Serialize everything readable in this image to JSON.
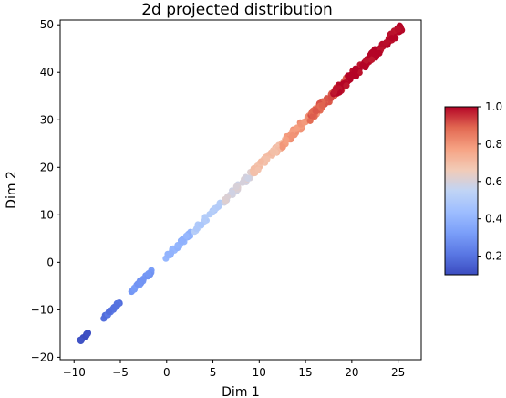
{
  "chart_data": {
    "type": "scatter",
    "title": "2d projected distribution",
    "xlabel": "Dim 1",
    "ylabel": "Dim 2",
    "xlim": [
      -11.5,
      27.5
    ],
    "ylim": [
      -20.5,
      51.0
    ],
    "xticks": [
      -10,
      -5,
      0,
      5,
      10,
      15,
      20,
      25
    ],
    "yticks": [
      -20,
      -10,
      0,
      10,
      20,
      30,
      40,
      50
    ],
    "colormap": "coolwarm",
    "colorbar": {
      "range": [
        0.1,
        1.0
      ],
      "ticks": [
        0.2,
        0.4,
        0.6,
        0.8,
        1.0
      ],
      "tick_labels": [
        "0.2",
        "0.4",
        "0.6",
        "0.8",
        "1.0"
      ]
    },
    "clusters": [
      {
        "x_range": [
          -9.5,
          -8.5
        ],
        "count": 14,
        "color_value": 0.1
      },
      {
        "x_range": [
          -6.8,
          -5.0
        ],
        "count": 24,
        "color_value": 0.2
      },
      {
        "x_range": [
          -3.8,
          -1.2
        ],
        "count": 30,
        "color_value": 0.3
      },
      {
        "x_range": [
          -0.2,
          2.6
        ],
        "count": 28,
        "color_value": 0.4
      },
      {
        "x_range": [
          3.0,
          5.8
        ],
        "count": 26,
        "color_value": 0.5
      },
      {
        "x_range": [
          6.2,
          9.3
        ],
        "count": 28,
        "color_value": 0.6
      },
      {
        "x_range": [
          9.3,
          12.8
        ],
        "count": 42,
        "color_value": 0.7
      },
      {
        "x_range": [
          12.5,
          16.5
        ],
        "count": 56,
        "color_value": 0.8
      },
      {
        "x_range": [
          15.5,
          19.5
        ],
        "count": 60,
        "color_value": 0.9
      },
      {
        "x_range": [
          18.0,
          25.6
        ],
        "count": 110,
        "color_value": 1.0
      }
    ]
  }
}
